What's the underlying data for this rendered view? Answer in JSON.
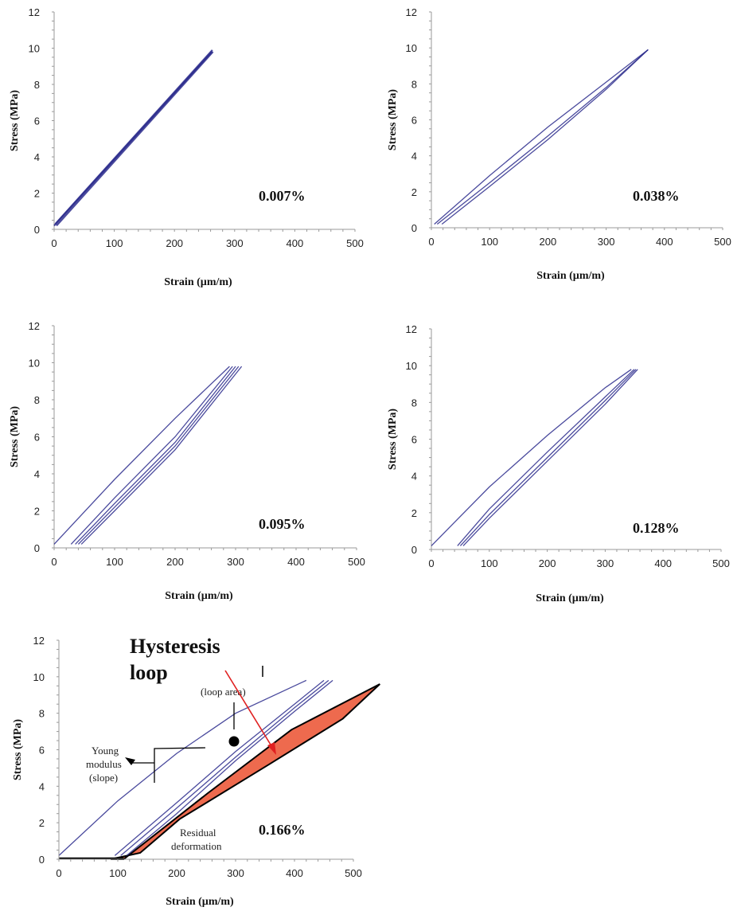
{
  "chart_data": [
    {
      "type": "line",
      "percent_label": "0.007%",
      "xlabel": "Strain (µm/m)",
      "ylabel": "Stress (MPa)",
      "xlim": [
        0,
        500
      ],
      "ylim": [
        0,
        12
      ],
      "xticks": [
        "0",
        "100",
        "200",
        "300",
        "400",
        "500"
      ],
      "yticks": [
        "0",
        "2",
        "4",
        "6",
        "8",
        "10",
        "12"
      ],
      "series_color": "#2a2a8c",
      "series": [
        {
          "x": [
            0,
            262
          ],
          "y": [
            0.2,
            9.8
          ]
        },
        {
          "x": [
            4,
            264
          ],
          "y": [
            0.2,
            9.8
          ]
        },
        {
          "x": [
            2,
            263
          ],
          "y": [
            0.3,
            9.9
          ]
        }
      ]
    },
    {
      "type": "line",
      "percent_label": "0.038%",
      "xlabel": "Strain (µm/m)",
      "ylabel": "Stress (MPa)",
      "xlim": [
        0,
        500
      ],
      "ylim": [
        0,
        12
      ],
      "xticks": [
        "0",
        "100",
        "200",
        "300",
        "400",
        "500"
      ],
      "yticks": [
        "0",
        "2",
        "4",
        "6",
        "8",
        "10",
        "12"
      ],
      "series_color": "#2a2a8c",
      "series": [
        {
          "x": [
            5,
            100,
            200,
            300,
            372
          ],
          "y": [
            0.2,
            2.9,
            5.6,
            8.1,
            9.9
          ]
        },
        {
          "x": [
            10,
            100,
            200,
            300,
            372
          ],
          "y": [
            0.2,
            2.5,
            5.1,
            7.8,
            9.9
          ]
        },
        {
          "x": [
            18,
            100,
            200,
            300,
            372
          ],
          "y": [
            0.2,
            2.3,
            4.9,
            7.7,
            9.9
          ]
        }
      ]
    },
    {
      "type": "line",
      "percent_label": "0.095%",
      "xlabel": "Strain (µm/m)",
      "ylabel": "Stress (MPa)",
      "xlim": [
        0,
        500
      ],
      "ylim": [
        0,
        12
      ],
      "xticks": [
        "0",
        "100",
        "200",
        "300",
        "400",
        "500"
      ],
      "yticks": [
        "0",
        "2",
        "4",
        "6",
        "8",
        "10",
        "12"
      ],
      "series_color": "#2a2a8c",
      "series": [
        {
          "x": [
            0,
            100,
            200,
            290
          ],
          "y": [
            0.2,
            3.7,
            7.0,
            9.8
          ]
        },
        {
          "x": [
            28,
            100,
            200,
            295
          ],
          "y": [
            0.2,
            2.7,
            6.0,
            9.8
          ]
        },
        {
          "x": [
            35,
            100,
            200,
            300
          ],
          "y": [
            0.2,
            2.4,
            5.7,
            9.8
          ]
        },
        {
          "x": [
            40,
            100,
            200,
            305
          ],
          "y": [
            0.2,
            2.2,
            5.5,
            9.8
          ]
        },
        {
          "x": [
            45,
            100,
            200,
            310
          ],
          "y": [
            0.2,
            2.0,
            5.3,
            9.8
          ]
        }
      ]
    },
    {
      "type": "line",
      "percent_label": "0.128%",
      "xlabel": "Strain (µm/m)",
      "ylabel": "Stress (MPa)",
      "xlim": [
        0,
        500
      ],
      "ylim": [
        0,
        12
      ],
      "xticks": [
        "0",
        "100",
        "200",
        "300",
        "400",
        "500"
      ],
      "yticks": [
        "0",
        "2",
        "4",
        "6",
        "8",
        "10",
        "12"
      ],
      "series_color": "#2a2a8c",
      "series": [
        {
          "x": [
            0,
            100,
            200,
            300,
            345
          ],
          "y": [
            0.2,
            3.4,
            6.2,
            8.8,
            9.8
          ]
        },
        {
          "x": [
            45,
            100,
            200,
            300,
            350
          ],
          "y": [
            0.2,
            2.2,
            5.3,
            8.3,
            9.8
          ]
        },
        {
          "x": [
            50,
            100,
            200,
            300,
            353
          ],
          "y": [
            0.2,
            1.9,
            5.0,
            8.1,
            9.8
          ]
        },
        {
          "x": [
            55,
            100,
            200,
            300,
            356
          ],
          "y": [
            0.2,
            1.7,
            4.8,
            7.9,
            9.8
          ]
        }
      ]
    },
    {
      "type": "line",
      "percent_label": "0.166%",
      "xlabel": "Strain (µm/m)",
      "ylabel": "Stress (MPa)",
      "xlim": [
        0,
        500
      ],
      "ylim": [
        0,
        12
      ],
      "xticks": [
        "0",
        "100",
        "200",
        "300",
        "400",
        "500"
      ],
      "yticks": [
        "0",
        "2",
        "4",
        "6",
        "8",
        "10",
        "12"
      ],
      "series_color": "#2a2a8c",
      "series": [
        {
          "x": [
            0,
            100,
            200,
            300,
            420
          ],
          "y": [
            0.2,
            3.2,
            5.8,
            8.0,
            9.8
          ]
        },
        {
          "x": [
            95,
            200,
            300,
            400,
            450
          ],
          "y": [
            0.2,
            3.1,
            5.9,
            8.5,
            9.8
          ]
        },
        {
          "x": [
            105,
            200,
            300,
            400,
            458
          ],
          "y": [
            0.2,
            2.8,
            5.6,
            8.3,
            9.8
          ]
        },
        {
          "x": [
            115,
            200,
            300,
            400,
            465
          ],
          "y": [
            0.2,
            2.5,
            5.4,
            8.1,
            9.8
          ]
        }
      ],
      "annotations": {
        "hysteresis_title_line1": "Hysteresis",
        "hysteresis_title_line2": "loop",
        "loop_area_label": "(loop area)",
        "young_label_line1": "Young",
        "young_label_line2": "modulus",
        "young_label_line3": "(slope)",
        "residual_label_line1": "Residual",
        "residual_label_line2": "deformation",
        "shape_color": "#ee6a4e",
        "arrow_color": "#e02020"
      }
    }
  ]
}
